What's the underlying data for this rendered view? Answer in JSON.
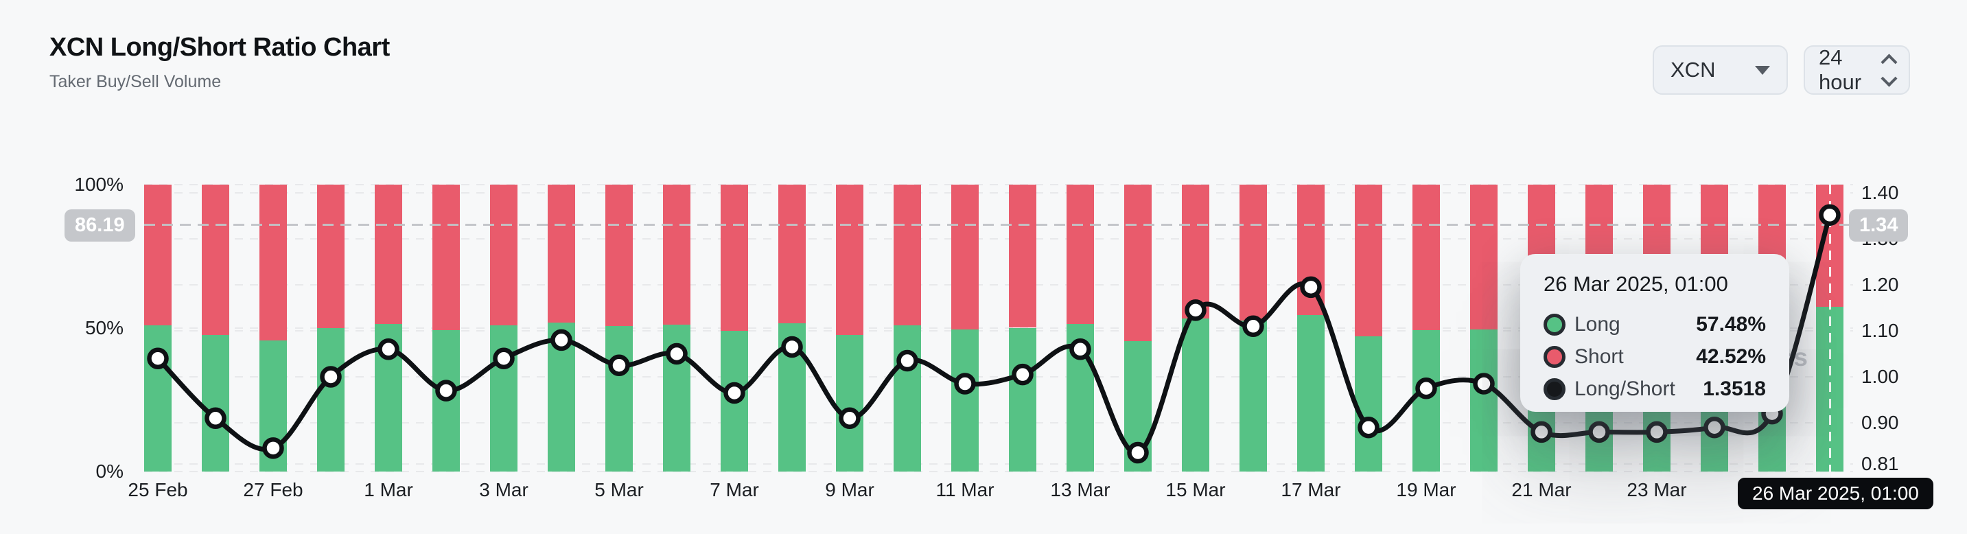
{
  "header": {
    "title": "XCN Long/Short Ratio Chart",
    "subtitle": "Taker Buy/Sell Volume"
  },
  "controls": {
    "symbol_select": {
      "value": "XCN"
    },
    "interval_select": {
      "value": "24 hour"
    }
  },
  "watermark": "coinglass",
  "crosshair": {
    "left_badge": "86.19",
    "right_badge": "1.34",
    "date_badge": "26 Mar 2025, 01:00",
    "left_value_pct": 86.19,
    "right_value_ratio": 1.34
  },
  "tooltip": {
    "title": "26 Mar 2025, 01:00",
    "rows": [
      {
        "label": "Long",
        "value": "57.48%",
        "color": "#56c285"
      },
      {
        "label": "Short",
        "value": "42.52%",
        "color": "#e95b6c"
      },
      {
        "label": "Long/Short",
        "value": "1.3518",
        "color": "#16181b"
      }
    ]
  },
  "chart_data": {
    "type": "bar",
    "subtype": "stacked-percent-columns-with-ratio-line",
    "title": "XCN Long/Short Ratio Chart",
    "categories": [
      "25 Feb",
      "26 Feb",
      "27 Feb",
      "28 Feb",
      "1 Mar",
      "2 Mar",
      "3 Mar",
      "4 Mar",
      "5 Mar",
      "6 Mar",
      "7 Mar",
      "8 Mar",
      "9 Mar",
      "10 Mar",
      "11 Mar",
      "12 Mar",
      "13 Mar",
      "14 Mar",
      "15 Mar",
      "16 Mar",
      "17 Mar",
      "18 Mar",
      "19 Mar",
      "20 Mar",
      "21 Mar",
      "22 Mar",
      "23 Mar",
      "24 Mar",
      "25 Mar",
      "26 Mar"
    ],
    "series": [
      {
        "name": "Long",
        "unit": "%",
        "axis": "left",
        "color": "#56c285",
        "values": [
          50.98,
          47.64,
          45.8,
          50.0,
          51.46,
          49.24,
          50.98,
          51.92,
          50.62,
          51.22,
          49.11,
          51.57,
          47.64,
          50.86,
          49.62,
          50.12,
          51.46,
          45.5,
          53.38,
          52.61,
          54.44,
          47.09,
          49.37,
          49.62,
          46.81,
          46.81,
          46.81,
          47.09,
          47.92,
          57.48
        ]
      },
      {
        "name": "Short",
        "unit": "%",
        "axis": "left",
        "color": "#e95b6c",
        "values": [
          49.02,
          52.36,
          54.2,
          50.0,
          48.54,
          50.76,
          49.02,
          48.08,
          49.38,
          48.78,
          50.89,
          48.43,
          52.36,
          49.14,
          50.38,
          49.88,
          48.54,
          54.5,
          46.62,
          47.39,
          45.56,
          52.91,
          50.63,
          50.38,
          53.19,
          53.19,
          53.19,
          52.91,
          52.08,
          42.52
        ]
      },
      {
        "name": "Long/Short",
        "type": "line",
        "axis": "right",
        "color": "#0e1114",
        "values": [
          1.04,
          0.91,
          0.845,
          1.0,
          1.06,
          0.97,
          1.04,
          1.08,
          1.025,
          1.05,
          0.965,
          1.065,
          0.91,
          1.035,
          0.985,
          1.005,
          1.06,
          0.835,
          1.145,
          1.11,
          1.195,
          0.89,
          0.975,
          0.985,
          0.88,
          0.88,
          0.88,
          0.89,
          0.92,
          1.3518
        ]
      }
    ],
    "left_axis": {
      "ticks": [
        "100%",
        "50%",
        "0%"
      ],
      "tick_values": [
        100,
        50,
        0
      ],
      "range": [
        0,
        100
      ]
    },
    "right_axis": {
      "ticks": [
        "1.40",
        "1.30",
        "1.20",
        "1.10",
        "1.00",
        "0.90",
        "0.81"
      ],
      "tick_values": [
        1.4,
        1.3,
        1.2,
        1.1,
        1.0,
        0.9,
        0.81
      ],
      "range": [
        0.81,
        1.4
      ]
    },
    "x_tick_labels": [
      "25 Feb",
      "27 Feb",
      "1 Mar",
      "3 Mar",
      "5 Mar",
      "7 Mar",
      "9 Mar",
      "11 Mar",
      "13 Mar",
      "15 Mar",
      "17 Mar",
      "19 Mar",
      "21 Mar",
      "23 Mar",
      "25 Mar"
    ],
    "grid": "dashed-horizontal",
    "hovered_point": {
      "date": "26 Mar 2025, 01:00",
      "long": "57.48%",
      "short": "42.52%",
      "ratio": "1.3518"
    }
  }
}
